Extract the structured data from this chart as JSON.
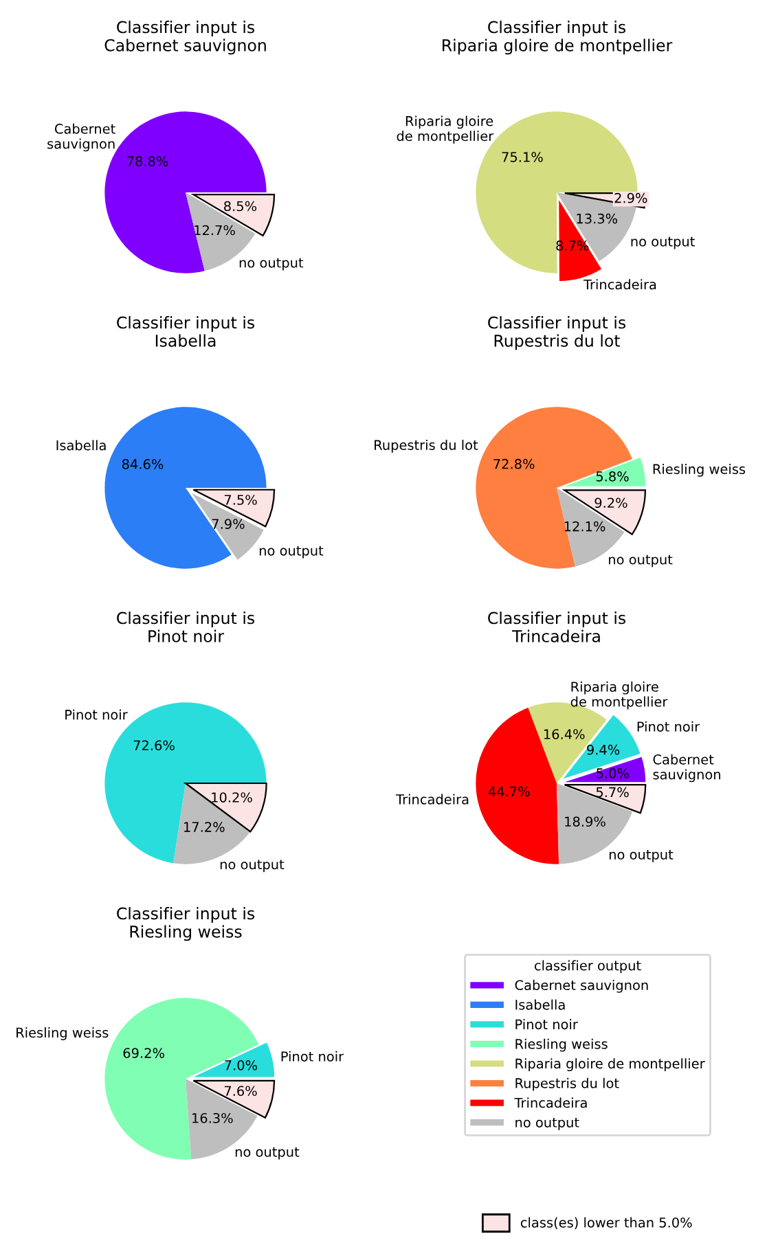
{
  "chart_data": [
    {
      "type": "pie",
      "title": "Classifier input is\nCabernet sauvignon",
      "categories": [
        "Cabernet\nsauvignon",
        "no output",
        null
      ],
      "values": [
        78.8,
        12.7,
        8.5
      ],
      "colors": [
        "#8000ff",
        "#bebebe",
        "#fde4e4"
      ],
      "value_labels": [
        "78.8%",
        "12.7%",
        "8.5%"
      ]
    },
    {
      "type": "pie",
      "title": "Classifier input is\nRiparia gloire de montpellier",
      "categories": [
        "Riparia gloire\nde montpellier",
        "Trincadeira",
        "no output",
        null
      ],
      "values": [
        75.1,
        8.7,
        13.3,
        2.9
      ],
      "colors": [
        "#d4dd80",
        "#ff0000",
        "#bebebe",
        "#fde4e4"
      ],
      "value_labels": [
        "75.1%",
        "8.7%",
        "13.3%",
        "2.9%"
      ]
    },
    {
      "type": "pie",
      "title": "Classifier input is\nIsabella",
      "categories": [
        "Isabella",
        "no output",
        null
      ],
      "values": [
        84.6,
        7.9,
        7.5
      ],
      "colors": [
        "#2c7ef7",
        "#bebebe",
        "#fde4e4"
      ],
      "value_labels": [
        "84.6%",
        "7.9%",
        "7.5%"
      ]
    },
    {
      "type": "pie",
      "title": "Classifier input is\nRupestris du lot",
      "categories": [
        "Riesling weiss",
        "Rupestris du lot",
        "no output",
        null
      ],
      "values": [
        5.8,
        72.8,
        12.1,
        9.2
      ],
      "colors": [
        "#80ffb4",
        "#ff7f41",
        "#bebebe",
        "#fde4e4"
      ],
      "value_labels": [
        "5.8%",
        "72.8%",
        "12.1%",
        "9.2%"
      ]
    },
    {
      "type": "pie",
      "title": "Classifier input is\nPinot noir",
      "categories": [
        "Pinot noir",
        "no output",
        null
      ],
      "values": [
        72.6,
        17.2,
        10.2
      ],
      "colors": [
        "#2adddd",
        "#bebebe",
        "#fde4e4"
      ],
      "value_labels": [
        "72.6%",
        "17.2%",
        "10.2%"
      ]
    },
    {
      "type": "pie",
      "title": "Classifier input is\nTrincadeira",
      "categories": [
        "Cabernet\nsauvignon",
        "Pinot noir",
        "Riparia gloire\nde montpellier",
        "Trincadeira",
        "no output",
        null
      ],
      "values": [
        5.0,
        9.4,
        16.4,
        44.7,
        18.9,
        5.7
      ],
      "colors": [
        "#8000ff",
        "#2adddd",
        "#d4dd80",
        "#ff0000",
        "#bebebe",
        "#fde4e4"
      ],
      "value_labels": [
        "5.0%",
        "9.4%",
        "16.4%",
        "44.7%",
        "18.9%",
        "5.7%"
      ]
    },
    {
      "type": "pie",
      "title": "Classifier input is\nRiesling weiss",
      "categories": [
        "Pinot noir",
        "Riesling weiss",
        "no output",
        null
      ],
      "values": [
        7.0,
        69.2,
        16.3,
        7.6
      ],
      "colors": [
        "#2adddd",
        "#80ffb4",
        "#bebebe",
        "#fde4e4"
      ],
      "value_labels": [
        "7.0%",
        "69.2%",
        "16.3%",
        "7.6%"
      ]
    },
    {
      "type": "other",
      "legend_title": "classifier output",
      "categories": [
        "Cabernet sauvignon",
        "Isabella",
        "Pinot noir",
        "Riesling weiss",
        "Riparia gloire de montpellier",
        "Rupestris du lot",
        "Trincadeira",
        "no output"
      ],
      "colors": [
        "#8000ff",
        "#2c7ef7",
        "#2adddd",
        "#80ffb4",
        "#d4dd80",
        "#ff7f41",
        "#ff0000",
        "#bebebe"
      ],
      "color": "#fde4e4",
      "annotations": [
        "class(es) lower than 5.0%"
      ]
    }
  ]
}
